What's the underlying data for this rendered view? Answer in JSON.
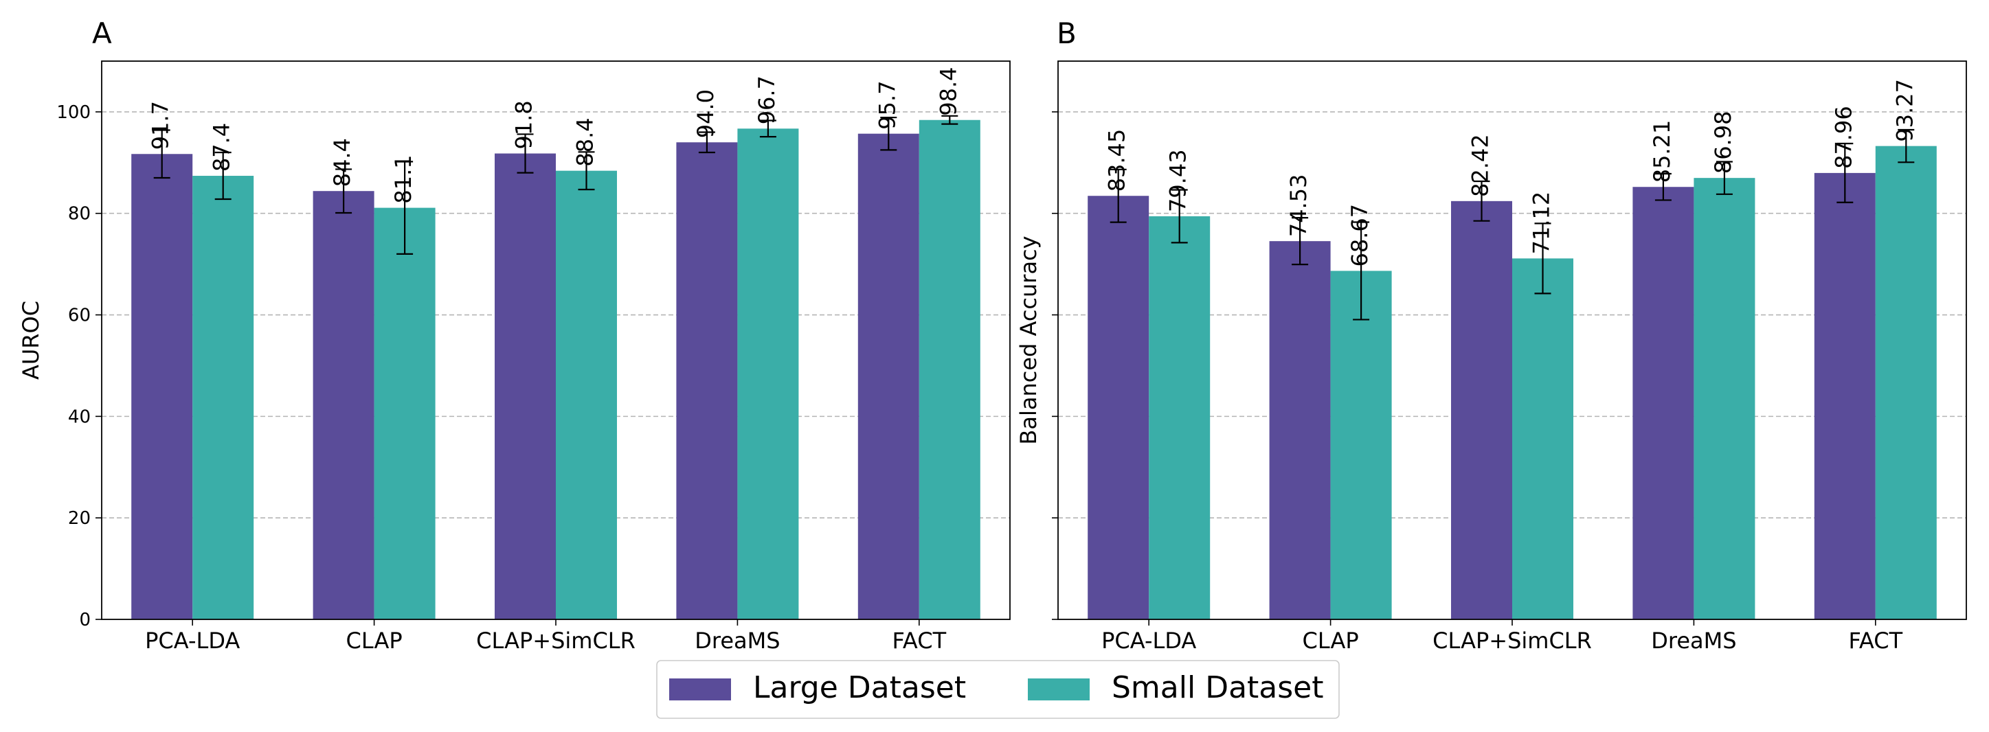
{
  "chart_data": [
    {
      "panel": "A",
      "type": "bar",
      "ylabel": "AUROC",
      "xlabel": "",
      "ylim": [
        0,
        110
      ],
      "yticks": [
        0,
        20,
        40,
        60,
        80,
        100
      ],
      "ytick_labels": [
        "0",
        "20",
        "40",
        "60",
        "80",
        "100"
      ],
      "grid": "y-dashed",
      "categories": [
        "PCA-LDA",
        "CLAP",
        "CLAP+SimCLR",
        "DreaMS",
        "FACT"
      ],
      "series": [
        {
          "name": "Large Dataset",
          "values": [
            91.7,
            84.4,
            91.8,
            94.0,
            95.7
          ],
          "labels": [
            "91.7",
            "84.4",
            "91.8",
            "94.0",
            "95.7"
          ],
          "err": [
            4.7,
            4.3,
            3.8,
            2.0,
            3.2
          ]
        },
        {
          "name": "Small Dataset",
          "values": [
            87.4,
            81.1,
            88.4,
            96.7,
            98.4
          ],
          "labels": [
            "87.4",
            "81.1",
            "88.4",
            "96.7",
            "98.4"
          ],
          "err": [
            4.6,
            9.1,
            3.7,
            1.6,
            0.8
          ]
        }
      ]
    },
    {
      "panel": "B",
      "type": "bar",
      "ylabel": "Balanced Accuracy",
      "xlabel": "",
      "ylim": [
        0,
        110
      ],
      "yticks": [
        0,
        20,
        40,
        60,
        80,
        100
      ],
      "ytick_labels": [],
      "grid": "y-dashed",
      "categories": [
        "PCA-LDA",
        "CLAP",
        "CLAP+SimCLR",
        "DreaMS",
        "FACT"
      ],
      "series": [
        {
          "name": "Large Dataset",
          "values": [
            83.45,
            74.53,
            82.42,
            85.21,
            87.96
          ],
          "labels": [
            "83.45",
            "74.53",
            "82.42",
            "85.21",
            "87.96"
          ],
          "err": [
            5.2,
            4.6,
            3.9,
            2.6,
            5.8
          ]
        },
        {
          "name": "Small Dataset",
          "values": [
            79.43,
            68.67,
            71.12,
            86.98,
            93.27
          ],
          "labels": [
            "79.43",
            "68.67",
            "71.12",
            "86.98",
            "93.27"
          ],
          "err": [
            5.2,
            9.6,
            6.9,
            3.2,
            3.2
          ]
        }
      ]
    }
  ],
  "legend": {
    "placement": "bottom-center",
    "items": [
      {
        "label": "Large Dataset",
        "color": "#5a4c99"
      },
      {
        "label": "Small Dataset",
        "color": "#3aaea8"
      }
    ]
  },
  "colors": {
    "series": [
      "#5a4c99",
      "#3aaea8"
    ],
    "grid": "#b5b5b5",
    "axis": "#000000"
  }
}
